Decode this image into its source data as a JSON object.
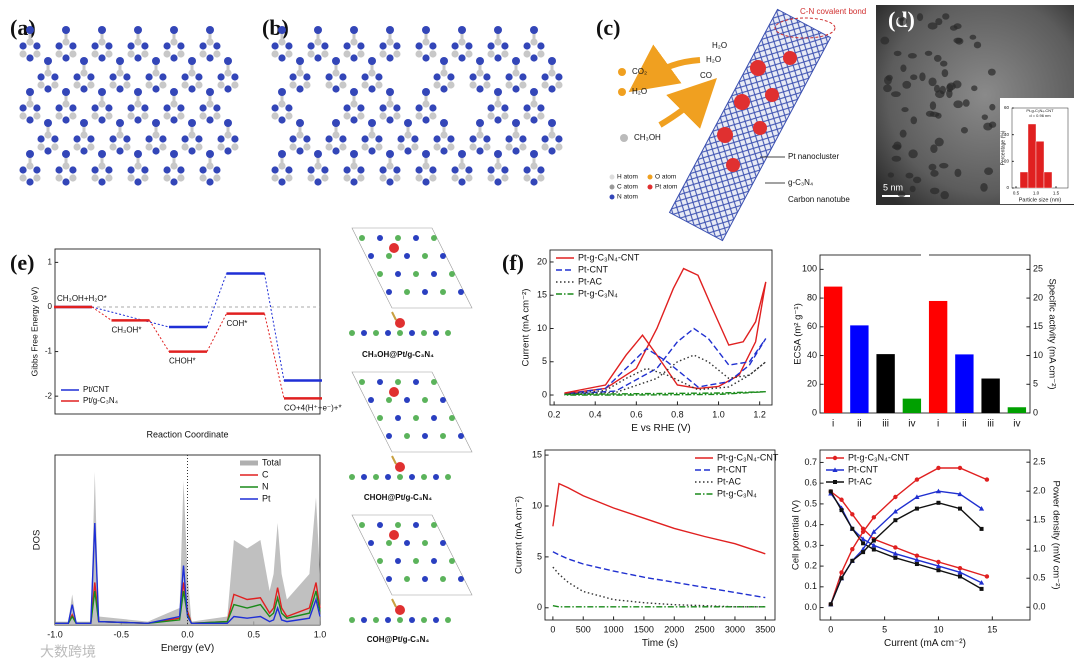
{
  "figure": {
    "panel_labels": [
      "(a)",
      "(b)",
      "(c)",
      "(d)",
      "(e)",
      "(f)"
    ],
    "c_labels": [
      "C-N covalent bond",
      "CO₂",
      "H₂O",
      "CH₃OH",
      "H₂O",
      "H₂O",
      "CO",
      "Pt nanocluster",
      "g-C₃N₄",
      "Carbon nanotube"
    ],
    "atom_legend": [
      "H atom",
      "O atom",
      "C atom",
      "Pt atom",
      "N atom"
    ],
    "scale_bar": "5 nm",
    "captions": [
      "CH₃OH@Pt/g-C₃N₄",
      "CHOH@Pt/g-C₃N₄",
      "COH@Pt/g-C₃N₄"
    ],
    "watermark": "大数跨境"
  },
  "chart_data": [
    {
      "type": "step",
      "ylabel": "Gibbs Free Energy (eV)",
      "xlabel": "Reaction Coordinate",
      "categories": [
        "CH₃OH+H₂O*",
        "CH₃OH*",
        "CHOH*",
        "COH*",
        "CO+4(H⁺+e⁻)+*"
      ],
      "series": [
        {
          "name": "Pt/CNT",
          "color": "#1f2fd6",
          "values": [
            0,
            null,
            -0.45,
            0.75,
            -1.65
          ]
        },
        {
          "name": "Pt/g-C₃N₄",
          "color": "#e02020",
          "values": [
            0,
            -0.3,
            -1.0,
            -0.15,
            -2.05
          ]
        }
      ],
      "ylim": [
        -2.4,
        1.3
      ],
      "yticks": [
        -2,
        -1,
        0,
        1
      ],
      "legend": "lower left"
    },
    {
      "type": "line",
      "xlabel": "Energy (eV)",
      "ylabel": "DOS",
      "x": [
        -1,
        -0.9,
        -0.87,
        -0.84,
        -0.73,
        -0.7,
        -0.67,
        -0.3,
        -0.06,
        -0.03,
        0,
        0.03,
        0.3,
        0.35,
        0.45,
        0.55,
        0.62,
        0.65,
        0.68,
        0.71,
        0.75,
        0.92,
        0.97,
        1
      ],
      "series": [
        {
          "name": "Total",
          "color": "#b0b0b0",
          "area": true,
          "values": [
            0.02,
            0.02,
            0.18,
            0.02,
            0.02,
            0.9,
            0.05,
            0.02,
            0.1,
            0.85,
            0.3,
            0.02,
            0.05,
            0.5,
            0.45,
            0.5,
            0.2,
            0.3,
            0.6,
            0.3,
            0.15,
            0.3,
            0.75,
            0.3
          ]
        },
        {
          "name": "C",
          "color": "#e02020",
          "values": [
            0.01,
            0.01,
            0.06,
            0.01,
            0.01,
            0.25,
            0.02,
            0.01,
            0.04,
            0.25,
            0.08,
            0.01,
            0.02,
            0.18,
            0.15,
            0.16,
            0.07,
            0.1,
            0.22,
            0.1,
            0.05,
            0.1,
            0.25,
            0.1
          ]
        },
        {
          "name": "N",
          "color": "#1a8a1a",
          "values": [
            0.01,
            0.01,
            0.05,
            0.01,
            0.01,
            0.2,
            0.02,
            0.01,
            0.03,
            0.2,
            0.06,
            0.01,
            0.02,
            0.12,
            0.1,
            0.12,
            0.05,
            0.07,
            0.16,
            0.07,
            0.04,
            0.07,
            0.2,
            0.08
          ]
        },
        {
          "name": "Pt",
          "color": "#1f2fd6",
          "values": [
            0.01,
            0.01,
            0.12,
            0.01,
            0.01,
            0.6,
            0.02,
            0.01,
            0.05,
            0.35,
            0.05,
            0.01,
            0.01,
            0.05,
            0.04,
            0.05,
            0.02,
            0.03,
            0.1,
            0.03,
            0.02,
            0.04,
            0.15,
            0.05
          ]
        }
      ],
      "xlim": [
        -1,
        1
      ],
      "xticks": [
        {
          "value": -1,
          "label": "-1.0"
        },
        -0.5,
        {
          "value": 0,
          "label": "0.0"
        },
        0.5,
        {
          "value": 1,
          "label": "1.0"
        }
      ],
      "ylim": [
        0,
        1
      ],
      "legend": "upper right"
    },
    {
      "type": "line",
      "xlabel": "E vs RHE (V)",
      "ylabel": "Current (mA cm⁻²)",
      "series": [
        {
          "name": "Pt-g-C₃N₄-CNT",
          "color": "#e02020",
          "dash": "solid",
          "x": [
            0.25,
            0.45,
            0.6,
            0.7,
            0.78,
            0.83,
            0.9,
            0.97,
            1.05,
            1.12,
            1.18,
            1.23,
            1.18,
            1.1,
            1.0,
            0.9,
            0.8,
            0.7,
            0.63,
            0.55,
            0.45,
            0.25
          ],
          "values": [
            0.2,
            1,
            4,
            10,
            16,
            19,
            18,
            13,
            7.5,
            8,
            11,
            17,
            8,
            3,
            1.3,
            1,
            1.5,
            6,
            9,
            6,
            1.5,
            0.3
          ]
        },
        {
          "name": "Pt-CNT",
          "color": "#2030d0",
          "dash": "dashed",
          "x": [
            0.25,
            0.5,
            0.7,
            0.8,
            0.88,
            0.95,
            1.05,
            1.15,
            1.23,
            1.15,
            1.05,
            0.9,
            0.75,
            0.65,
            0.55,
            0.45,
            0.25
          ],
          "values": [
            0.1,
            0.6,
            4,
            8,
            10,
            8.5,
            4.5,
            5,
            8.5,
            4.5,
            2,
            1.2,
            5,
            7,
            4,
            1,
            0.1
          ]
        },
        {
          "name": "Pt-AC",
          "color": "#333333",
          "dash": "dotted",
          "x": [
            0.25,
            0.5,
            0.7,
            0.8,
            0.88,
            0.95,
            1.05,
            1.15,
            1.23,
            1.15,
            1.05,
            0.9,
            0.75,
            0.65,
            0.55,
            0.45,
            0.25
          ],
          "values": [
            0.1,
            0.4,
            2.5,
            5,
            6,
            5,
            2.5,
            3,
            5,
            3,
            1.2,
            0.8,
            3,
            4,
            2.5,
            0.7,
            0.1
          ]
        },
        {
          "name": "Pt-g-C₃N₄",
          "color": "#1a8a1a",
          "dash": "dashdot",
          "x": [
            0.25,
            0.6,
            1.0,
            1.23,
            1.0,
            0.6,
            0.25
          ],
          "values": [
            0.1,
            0.2,
            0.3,
            0.5,
            0.1,
            0,
            0
          ]
        }
      ],
      "xlim": [
        0.18,
        1.26
      ],
      "xticks": [
        0.2,
        0.4,
        0.6,
        0.8,
        {
          "value": 1,
          "label": "1.0"
        },
        1.2
      ],
      "ylim": [
        -1.5,
        21.8
      ],
      "yticks": [
        0,
        5,
        10,
        15,
        20
      ],
      "legend": "upper left"
    },
    {
      "type": "bar",
      "ylabel": "ECSA (m² g⁻¹)",
      "y2label": "Specific activity (mA cm⁻²)",
      "categories": [
        "i",
        "ii",
        "iii",
        "iv"
      ],
      "colors": [
        "#ff0000",
        "#0000ff",
        "#000000",
        "#00a000"
      ],
      "series": [
        {
          "axis": "y",
          "values": [
            88,
            61,
            41,
            10
          ]
        },
        {
          "axis": "y2",
          "values": [
            19.5,
            10.2,
            6,
            1
          ]
        }
      ],
      "ylim": [
        0,
        110
      ],
      "yticks": [
        0,
        20,
        40,
        60,
        80,
        100
      ],
      "y2lim": [
        0,
        27.5
      ],
      "y2ticks": [
        0,
        5,
        10,
        15,
        20,
        25
      ]
    },
    {
      "type": "line",
      "xlabel": "Time (s)",
      "ylabel": "Current (mA cm⁻²)",
      "x": [
        0,
        100,
        250,
        500,
        1000,
        1500,
        2000,
        2500,
        3000,
        3500
      ],
      "series": [
        {
          "name": "Pt-g-C₃N₄-CNT",
          "color": "#e02020",
          "dash": "solid",
          "values": [
            8,
            12.2,
            11.8,
            11,
            9.8,
            8.8,
            7.8,
            7,
            6.3,
            5.3
          ]
        },
        {
          "name": "Pt-CNT",
          "color": "#2030d0",
          "dash": "dashed",
          "values": [
            5.5,
            5.2,
            4.8,
            4.3,
            3.6,
            3,
            2.5,
            2,
            1.5,
            1
          ]
        },
        {
          "name": "Pt-AC",
          "color": "#333333",
          "dash": "dotted",
          "values": [
            4,
            3.3,
            2.5,
            1.6,
            0.8,
            0.5,
            0.3,
            0.2,
            0.1,
            0.1
          ]
        },
        {
          "name": "Pt-g-C₃N₄",
          "color": "#1a8a1a",
          "dash": "dashdot",
          "values": [
            0.2,
            0.1,
            0.1,
            0.1,
            0.1,
            0.1,
            0.1,
            0.1,
            0.1,
            0.1
          ]
        }
      ],
      "xlim": [
        -130,
        3660
      ],
      "xticks": [
        0,
        500,
        1000,
        1500,
        2000,
        2500,
        3000,
        3500
      ],
      "ylim": [
        -1.2,
        15.5
      ],
      "yticks": [
        0,
        5,
        10,
        15
      ],
      "legend": "upper right"
    },
    {
      "type": "line",
      "xlabel": "Current (mA cm⁻²)",
      "ylabel": "Cell potential (V)",
      "y2label": "Power density (mW cm⁻²)",
      "series": [
        {
          "name": "Pt-g-C₃N₄-CNT",
          "color": "#e02020",
          "marker": "circle",
          "x": [
            0,
            1,
            2,
            3,
            4,
            6,
            8,
            10,
            12,
            14.5
          ],
          "values": [
            0.56,
            0.52,
            0.45,
            0.38,
            0.33,
            0.29,
            0.25,
            0.22,
            0.19,
            0.15
          ]
        },
        {
          "name": "Pt-CNT",
          "color": "#2030d0",
          "marker": "triangle",
          "x": [
            0,
            1,
            2,
            3,
            4,
            6,
            8,
            10,
            12,
            14
          ],
          "values": [
            0.55,
            0.48,
            0.38,
            0.33,
            0.3,
            0.26,
            0.23,
            0.2,
            0.17,
            0.12
          ]
        },
        {
          "name": "Pt-AC",
          "color": "#111111",
          "marker": "square",
          "x": [
            0,
            1,
            2,
            3,
            4,
            6,
            8,
            10,
            12,
            14
          ],
          "values": [
            0.56,
            0.47,
            0.38,
            0.31,
            0.28,
            0.24,
            0.21,
            0.18,
            0.15,
            0.09
          ]
        },
        {
          "axis": "y2",
          "color": "#e02020",
          "marker": "circle",
          "x": [
            0,
            1,
            2,
            3,
            4,
            6,
            8,
            10,
            12,
            14.5
          ],
          "values": [
            0.05,
            0.6,
            1.0,
            1.3,
            1.55,
            1.9,
            2.2,
            2.4,
            2.4,
            2.2
          ]
        },
        {
          "axis": "y2",
          "color": "#2030d0",
          "marker": "triangle",
          "x": [
            0,
            1,
            2,
            3,
            4,
            6,
            8,
            10,
            12,
            14
          ],
          "values": [
            0.05,
            0.5,
            0.8,
            1.0,
            1.3,
            1.65,
            1.9,
            2.0,
            1.95,
            1.7
          ]
        },
        {
          "axis": "y2",
          "color": "#111111",
          "marker": "square",
          "x": [
            0,
            1,
            2,
            3,
            4,
            6,
            8,
            10,
            12,
            14
          ],
          "values": [
            0.05,
            0.5,
            0.8,
            0.95,
            1.15,
            1.5,
            1.7,
            1.8,
            1.7,
            1.35
          ]
        }
      ],
      "xlim": [
        -1,
        18.5
      ],
      "xticks": [
        0,
        5,
        10,
        15
      ],
      "ylim": [
        -0.06,
        0.76
      ],
      "yticks": [
        {
          "value": 0,
          "label": "0.0"
        },
        0.1,
        0.2,
        0.3,
        0.4,
        0.5,
        0.6,
        0.7
      ],
      "y2lim": [
        -0.22,
        2.71
      ],
      "y2ticks": [
        {
          "value": 0,
          "label": "0.0"
        },
        0.5,
        {
          "value": 1,
          "label": "1.0"
        },
        1.5,
        {
          "value": 2,
          "label": "2.0"
        },
        2.5
      ],
      "legend": "upper left"
    },
    {
      "type": "histogram",
      "xlabel": "Particle size (nm)",
      "ylabel": "Percentage (%)",
      "annotations": [
        "Pt-g-C₃N₄-CNT",
        "d = 0.96 nm"
      ],
      "bins": [
        0.6,
        0.8,
        1.0,
        1.2,
        1.4
      ],
      "values": [
        12,
        48,
        35,
        12
      ],
      "color": "#e02020",
      "xlim": [
        0.4,
        1.8
      ],
      "xticks": [
        0.5,
        {
          "value": 1,
          "label": "1.0"
        },
        1.5
      ],
      "ylim": [
        0,
        60
      ],
      "yticks": [
        0,
        20,
        40,
        60
      ]
    }
  ]
}
